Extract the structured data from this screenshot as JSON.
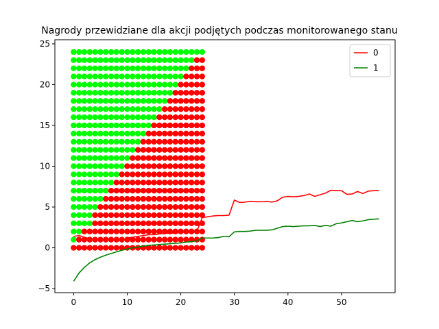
{
  "chart_data": {
    "type": "scatter",
    "title": "Nagrody przewidziane dla akcji podjętych podczas monitorowanego stanu",
    "xlabel": "",
    "ylabel": "",
    "xlim": [
      -3.5,
      60
    ],
    "ylim": [
      -5.5,
      25.5
    ],
    "xticks": [
      0,
      10,
      20,
      30,
      40,
      50
    ],
    "yticks": [
      -5,
      0,
      5,
      10,
      15,
      20,
      25
    ],
    "grid": false,
    "legend": {
      "position": "upper right",
      "entries": [
        "0",
        "1"
      ]
    },
    "scatter": {
      "description": "grid of points x=0..24, y=0..24; red where action 0 preferred, green where action 1 preferred",
      "x_range": [
        0,
        24
      ],
      "y_range": [
        0,
        24
      ],
      "boundary_x_by_y": [
        0,
        1,
        2,
        4,
        4,
        5,
        6,
        7,
        8,
        9,
        10,
        11,
        12,
        13,
        14,
        15,
        16,
        17,
        18,
        19,
        20,
        21,
        22,
        23,
        25
      ],
      "colors": {
        "action0": "#ff0000",
        "action1": "#00ff00"
      }
    },
    "series": [
      {
        "name": "0",
        "color": "#ff0000",
        "x": [
          0,
          1,
          2,
          3,
          4,
          5,
          6,
          7,
          8,
          9,
          10,
          11,
          12,
          13,
          14,
          15,
          16,
          17,
          18,
          19,
          20,
          21,
          22,
          23,
          24,
          25,
          26,
          27,
          28,
          29,
          30,
          31,
          32,
          33,
          34,
          35,
          36,
          37,
          38,
          39,
          40,
          41,
          42,
          43,
          44,
          45,
          46,
          47,
          48,
          49,
          50,
          51,
          52,
          53,
          54,
          55,
          56,
          57
        ],
        "y": [
          1.4,
          1.5,
          1.3,
          1.1,
          1.0,
          0.95,
          0.95,
          0.95,
          0.95,
          1.0,
          1.2,
          1.3,
          1.4,
          1.5,
          1.6,
          1.6,
          1.7,
          1.75,
          1.8,
          1.8,
          1.9,
          1.95,
          2.0,
          2.0,
          3.7,
          3.8,
          3.9,
          3.95,
          3.95,
          4.0,
          5.85,
          5.55,
          5.6,
          5.7,
          5.65,
          5.65,
          5.7,
          5.6,
          5.75,
          6.2,
          6.3,
          6.25,
          6.3,
          6.4,
          6.6,
          6.3,
          6.5,
          6.7,
          7.05,
          7.0,
          7.0,
          6.55,
          6.6,
          6.9,
          6.65,
          6.95,
          7.0,
          7.0
        ]
      },
      {
        "name": "1",
        "color": "#008000",
        "x": [
          0,
          1,
          2,
          3,
          4,
          5,
          6,
          7,
          8,
          9,
          10,
          11,
          12,
          13,
          14,
          15,
          16,
          17,
          18,
          19,
          20,
          21,
          22,
          23,
          24,
          25,
          26,
          27,
          28,
          29,
          30,
          31,
          32,
          33,
          34,
          35,
          36,
          37,
          38,
          39,
          40,
          41,
          42,
          43,
          44,
          45,
          46,
          47,
          48,
          49,
          50,
          51,
          52,
          53,
          54,
          55,
          56,
          57
        ],
        "y": [
          -4.1,
          -3.1,
          -2.4,
          -1.85,
          -1.45,
          -1.15,
          -0.9,
          -0.7,
          -0.5,
          -0.3,
          -0.15,
          0.0,
          0.1,
          0.2,
          0.3,
          0.35,
          0.4,
          0.45,
          0.5,
          0.55,
          0.6,
          0.7,
          0.75,
          0.85,
          1.2,
          1.2,
          1.2,
          1.25,
          1.4,
          1.35,
          1.95,
          2.0,
          2.0,
          2.05,
          2.15,
          2.15,
          2.15,
          2.2,
          2.4,
          2.6,
          2.65,
          2.6,
          2.65,
          2.7,
          2.7,
          2.75,
          2.6,
          2.75,
          2.65,
          2.95,
          3.05,
          3.2,
          3.35,
          3.2,
          3.3,
          3.45,
          3.5,
          3.55
        ]
      }
    ]
  }
}
